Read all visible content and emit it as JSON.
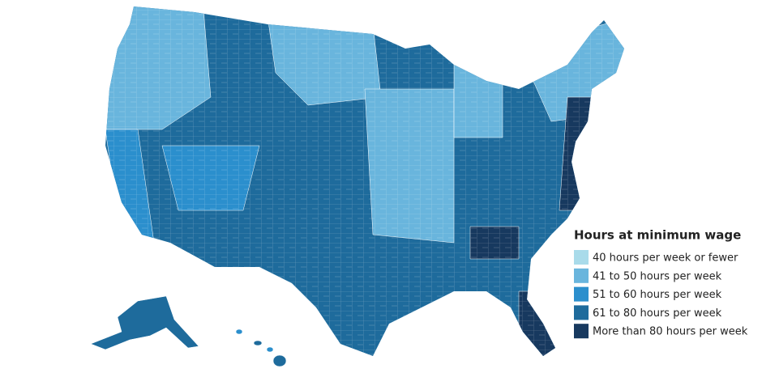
{
  "legend": {
    "title": "Hours at minimum wage",
    "items": [
      {
        "label": "40 hours per week or fewer",
        "color": "#a9dbea"
      },
      {
        "label": "41 to 50 hours per week",
        "color": "#69b5dd"
      },
      {
        "label": "51 to 60 hours per week",
        "color": "#2b8fcd"
      },
      {
        "label": "61 to 80 hours per week",
        "color": "#1e6b9c"
      },
      {
        "label": "More than 80 hours per week",
        "color": "#17395f"
      }
    ]
  }
}
